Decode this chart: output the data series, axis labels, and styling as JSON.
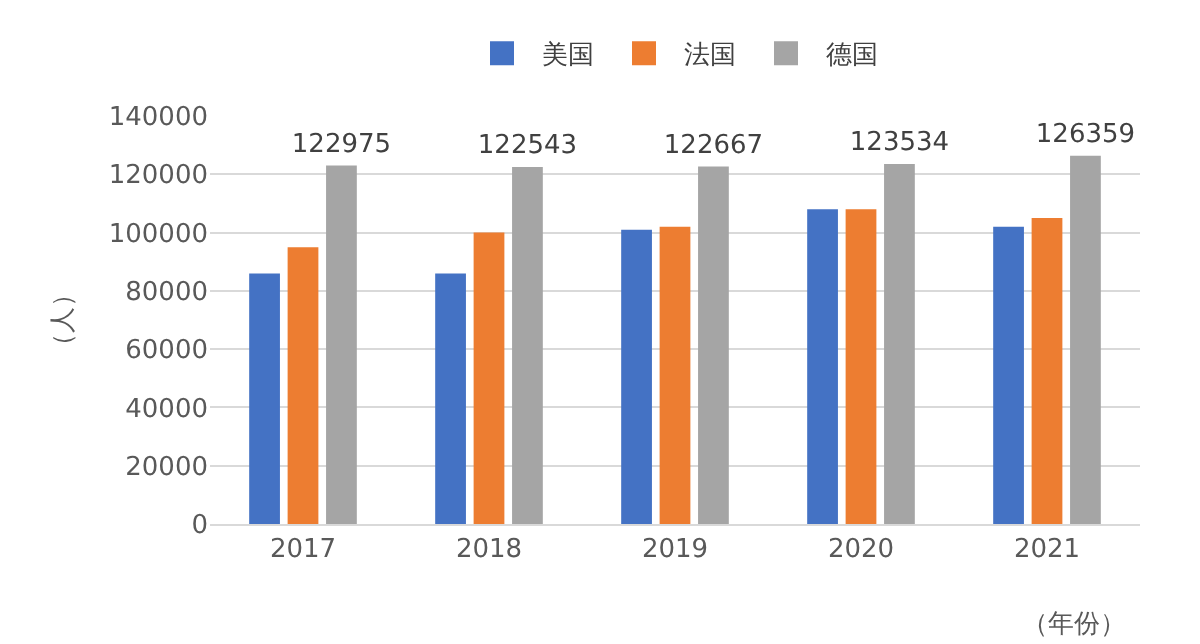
{
  "chart_data": {
    "type": "bar",
    "categories": [
      "2017",
      "2018",
      "2019",
      "2020",
      "2021"
    ],
    "series": [
      {
        "name": "美国",
        "color": "#4472c4",
        "values": [
          86000,
          86000,
          101000,
          108000,
          102000
        ]
      },
      {
        "name": "法国",
        "color": "#ed7d31",
        "values": [
          95000,
          100000,
          102000,
          108000,
          105000
        ]
      },
      {
        "name": "德国",
        "color": "#a5a5a5",
        "values": [
          122975,
          122543,
          122667,
          123534,
          126359
        ],
        "value_labels": [
          "122975",
          "122543",
          "122667",
          "123534",
          "126359"
        ]
      }
    ],
    "ylim": [
      0,
      140000
    ],
    "yticks": [
      0,
      20000,
      40000,
      60000,
      80000,
      100000,
      120000,
      140000
    ],
    "xlabel": "（年份）",
    "ylabel": "（人）",
    "grid": "y",
    "legend": "top"
  }
}
